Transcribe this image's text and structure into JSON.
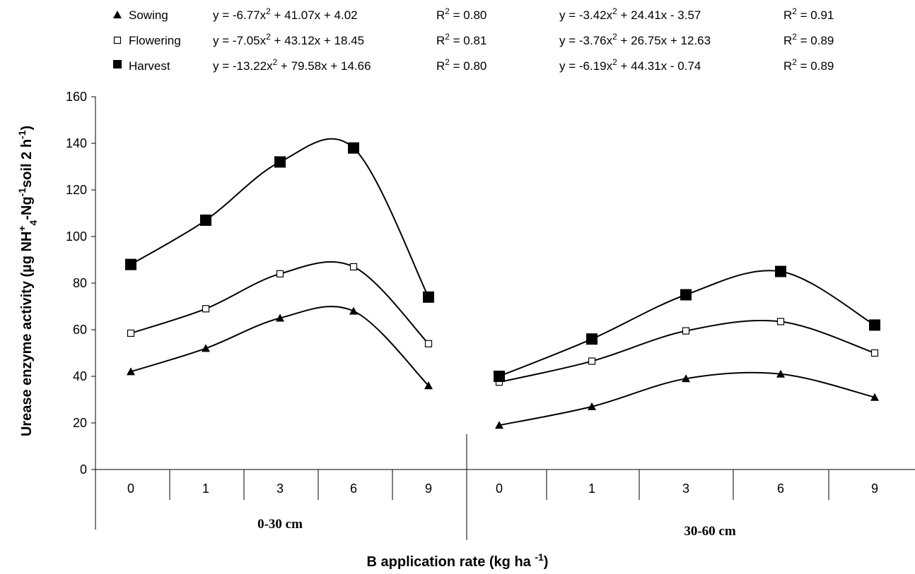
{
  "chart_data": {
    "type": "line",
    "ylabel_parts": [
      "Urease enzyme activity (µg NH",
      "+",
      "4",
      "-Ng",
      "-1",
      "soil 2 h",
      "-1",
      ")"
    ],
    "xlabel_parts": [
      "B application rate (kg ha ",
      "-1",
      ")"
    ],
    "ylim": [
      0,
      160
    ],
    "yticks": [
      0,
      20,
      40,
      60,
      80,
      100,
      120,
      140,
      160
    ],
    "groups": [
      {
        "label": "0-30 cm",
        "categories": [
          "0",
          "1",
          "3",
          "6",
          "9"
        ],
        "equations": [
          {
            "eq_parts": [
              "y = -6.77x",
              "2",
              " + 41.07x + 4.02"
            ],
            "r2_parts": [
              "R",
              "2",
              " = 0.80"
            ]
          },
          {
            "eq_parts": [
              "y = -7.05x",
              "2",
              " + 43.12x + 18.45"
            ],
            "r2_parts": [
              "R",
              "2",
              " = 0.81"
            ]
          },
          {
            "eq_parts": [
              "y = -13.22x",
              "2",
              " + 79.58x + 14.66"
            ],
            "r2_parts": [
              "R",
              "2",
              " = 0.80"
            ]
          }
        ]
      },
      {
        "label": "30-60 cm",
        "categories": [
          "0",
          "1",
          "3",
          "6",
          "9"
        ],
        "equations": [
          {
            "eq_parts": [
              "y = -3.42x",
              "2",
              " + 24.41x - 3.57"
            ],
            "r2_parts": [
              "R",
              "2",
              " = 0.91"
            ]
          },
          {
            "eq_parts": [
              "y = -3.76x",
              "2",
              " + 26.75x + 12.63"
            ],
            "r2_parts": [
              "R",
              "2",
              " = 0.89"
            ]
          },
          {
            "eq_parts": [
              "y = -6.19x",
              "2",
              " + 44.31x - 0.74"
            ],
            "r2_parts": [
              "R",
              "2",
              " = 0.89"
            ]
          }
        ]
      }
    ],
    "series": [
      {
        "name": "Sowing",
        "marker": "triangle-filled",
        "values": [
          [
            42,
            52,
            65,
            68,
            36
          ],
          [
            19,
            27,
            39,
            41,
            31
          ]
        ]
      },
      {
        "name": "Flowering",
        "marker": "square-open",
        "values": [
          [
            58.5,
            69,
            84,
            87,
            54
          ],
          [
            37.5,
            46.5,
            59.5,
            63.5,
            50
          ]
        ]
      },
      {
        "name": "Harvest",
        "marker": "square-filled",
        "values": [
          [
            88,
            107,
            132,
            138,
            74
          ],
          [
            40,
            56,
            75,
            85,
            62
          ]
        ]
      }
    ]
  }
}
